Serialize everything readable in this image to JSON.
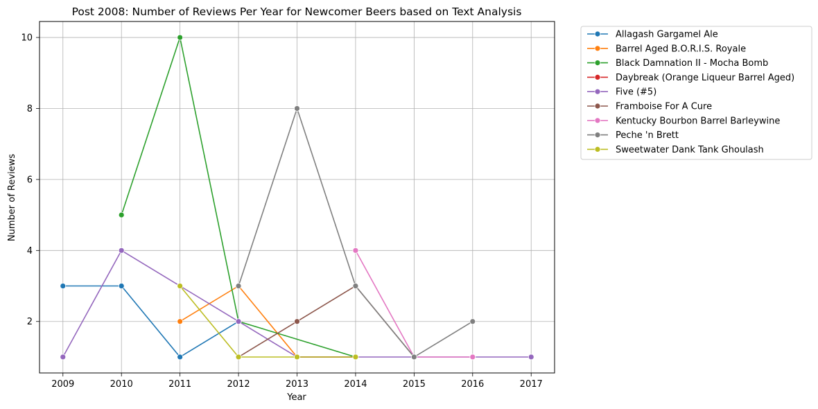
{
  "chart_data": {
    "type": "line",
    "title": "Post 2008: Number of Reviews Per Year for Newcomer Beers based on Text Analysis",
    "xlabel": "Year",
    "ylabel": "Number of Reviews",
    "x_ticks": [
      2009,
      2010,
      2011,
      2012,
      2013,
      2014,
      2015,
      2016,
      2017
    ],
    "y_ticks": [
      2,
      4,
      6,
      8,
      10
    ],
    "xlim": [
      2008.6,
      2017.4
    ],
    "ylim": [
      0.55,
      10.45
    ],
    "grid": true,
    "legend_position": "outside-top-right",
    "series": [
      {
        "name": "Allagash Gargamel Ale",
        "color": "#1f77b4",
        "points": [
          [
            2009,
            3
          ],
          [
            2010,
            3
          ],
          [
            2011,
            1
          ],
          [
            2012,
            2
          ]
        ]
      },
      {
        "name": "Barrel Aged B.O.R.I.S. Royale",
        "color": "#ff7f0e",
        "points": [
          [
            2011,
            2
          ],
          [
            2012,
            3
          ],
          [
            2013,
            1
          ],
          [
            2014,
            1
          ]
        ]
      },
      {
        "name": "Black Damnation II - Mocha Bomb",
        "color": "#2ca02c",
        "points": [
          [
            2010,
            5
          ],
          [
            2011,
            10
          ],
          [
            2012,
            2
          ],
          [
            2014,
            1
          ]
        ]
      },
      {
        "name": "Daybreak (Orange Liqueur Barrel Aged)",
        "color": "#d62728",
        "points": [
          [
            2013,
            1
          ],
          [
            2014,
            1
          ]
        ]
      },
      {
        "name": "Five (#5)",
        "color": "#9467bd",
        "points": [
          [
            2009,
            1
          ],
          [
            2010,
            4
          ],
          [
            2011,
            3
          ],
          [
            2012,
            2
          ],
          [
            2013,
            1
          ],
          [
            2014,
            1
          ],
          [
            2015,
            1
          ],
          [
            2016,
            1
          ],
          [
            2017,
            1
          ]
        ]
      },
      {
        "name": "Framboise For A Cure",
        "color": "#8c564b",
        "points": [
          [
            2012,
            1
          ],
          [
            2013,
            2
          ],
          [
            2014,
            3
          ],
          [
            2015,
            1
          ]
        ]
      },
      {
        "name": "Kentucky Bourbon Barrel Barleywine",
        "color": "#e377c2",
        "points": [
          [
            2014,
            4
          ],
          [
            2015,
            1
          ],
          [
            2016,
            1
          ]
        ]
      },
      {
        "name": "Peche 'n Brett",
        "color": "#7f7f7f",
        "points": [
          [
            2012,
            3
          ],
          [
            2013,
            8
          ],
          [
            2014,
            3
          ],
          [
            2015,
            1
          ],
          [
            2016,
            2
          ]
        ]
      },
      {
        "name": "Sweetwater Dank Tank Ghoulash",
        "color": "#bcbd22",
        "points": [
          [
            2011,
            3
          ],
          [
            2012,
            1
          ],
          [
            2013,
            1
          ],
          [
            2014,
            1
          ]
        ]
      }
    ]
  }
}
